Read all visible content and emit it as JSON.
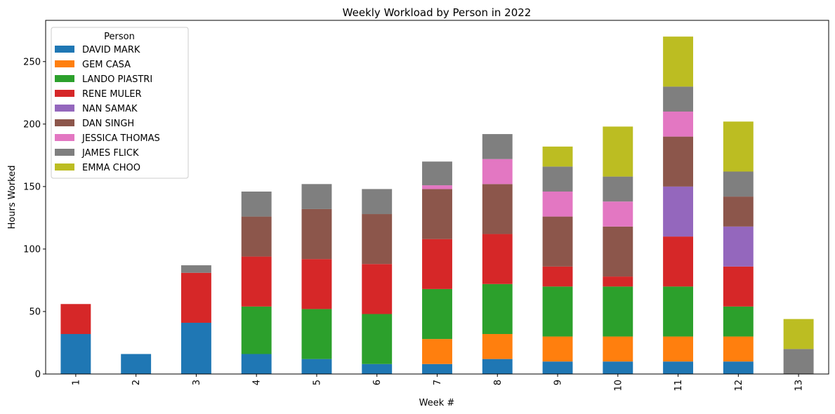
{
  "chart_data": {
    "type": "bar",
    "stacked": true,
    "title": "Weekly Workload by Person in 2022",
    "xlabel": "Week #",
    "ylabel": "Hours Worked",
    "ylim": [
      0,
      283
    ],
    "yticks": [
      0,
      50,
      100,
      150,
      200,
      250
    ],
    "categories": [
      "1",
      "2",
      "3",
      "4",
      "5",
      "6",
      "7",
      "8",
      "9",
      "10",
      "11",
      "12",
      "13"
    ],
    "legend": {
      "title": "Person",
      "position": "upper-left"
    },
    "series": [
      {
        "name": "DAVID MARK",
        "color": "#1f77b4",
        "values": [
          32,
          16,
          41,
          16,
          12,
          8,
          8,
          12,
          10,
          10,
          10,
          10,
          0
        ]
      },
      {
        "name": "GEM CASA",
        "color": "#ff7f0e",
        "values": [
          0,
          0,
          0,
          0,
          0,
          0,
          20,
          20,
          20,
          20,
          20,
          20,
          0
        ]
      },
      {
        "name": "LANDO PIASTRI",
        "color": "#2ca02c",
        "values": [
          0,
          0,
          0,
          38,
          40,
          40,
          40,
          40,
          40,
          40,
          40,
          24,
          0
        ]
      },
      {
        "name": "RENE MULER",
        "color": "#d62728",
        "values": [
          24,
          0,
          40,
          40,
          40,
          40,
          40,
          40,
          16,
          8,
          40,
          32,
          0
        ]
      },
      {
        "name": "NAN SAMAK",
        "color": "#9467bd",
        "values": [
          0,
          0,
          0,
          0,
          0,
          0,
          0,
          0,
          0,
          0,
          40,
          32,
          0
        ]
      },
      {
        "name": "DAN SINGH",
        "color": "#8c564b",
        "values": [
          0,
          0,
          0,
          32,
          40,
          40,
          40,
          40,
          40,
          40,
          40,
          24,
          0
        ]
      },
      {
        "name": "JESSICA THOMAS",
        "color": "#e377c2",
        "values": [
          0,
          0,
          0,
          0,
          0,
          0,
          3,
          20,
          20,
          20,
          20,
          0,
          0
        ]
      },
      {
        "name": "JAMES FLICK",
        "color": "#7f7f7f",
        "values": [
          0,
          0,
          6,
          20,
          20,
          20,
          19,
          20,
          20,
          20,
          20,
          20,
          20
        ]
      },
      {
        "name": "EMMA CHOO",
        "color": "#bcbd22",
        "values": [
          0,
          0,
          0,
          0,
          0,
          0,
          0,
          0,
          16,
          40,
          40,
          40,
          24
        ]
      }
    ]
  }
}
